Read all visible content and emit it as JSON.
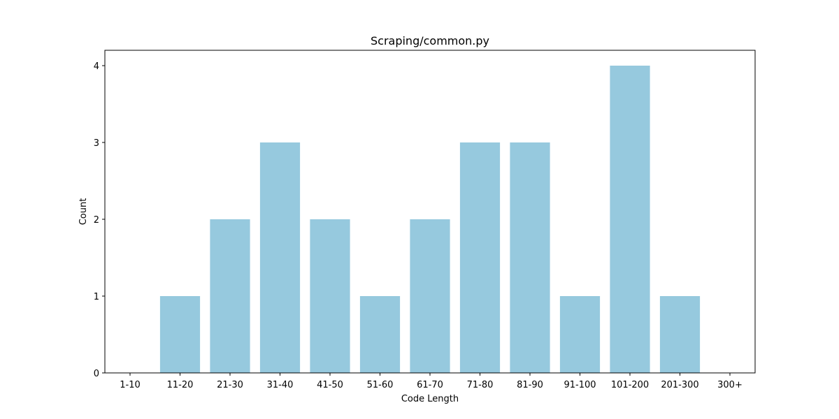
{
  "chart_data": {
    "type": "bar",
    "title": "Scraping/common.py",
    "xlabel": "Code Length",
    "ylabel": "Count",
    "categories": [
      "1-10",
      "11-20",
      "21-30",
      "31-40",
      "41-50",
      "51-60",
      "61-70",
      "71-80",
      "81-90",
      "91-100",
      "101-200",
      "201-300",
      "300+"
    ],
    "values": [
      0,
      1,
      2,
      3,
      2,
      1,
      2,
      3,
      3,
      1,
      4,
      1,
      0
    ],
    "ylim": [
      0,
      4.2
    ],
    "yticks": [
      "0",
      "1",
      "2",
      "3",
      "4"
    ],
    "grid": false,
    "bar_color": "#96c9de"
  }
}
